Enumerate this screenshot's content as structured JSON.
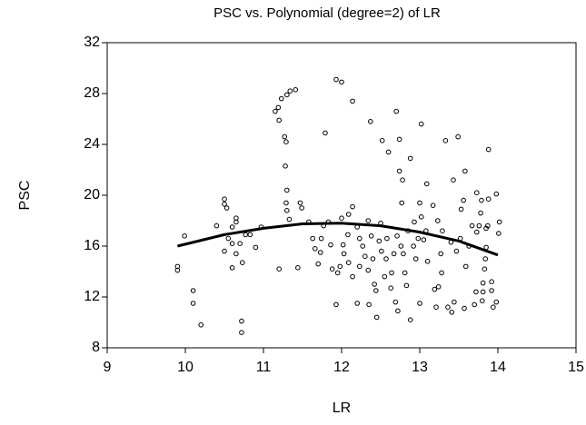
{
  "chart_data": {
    "type": "scatter",
    "title": "PSC vs. Polynomial (degree=2) of LR",
    "x_label": "LR",
    "y_label": "PSC",
    "xlim": [
      9,
      15
    ],
    "ylim": [
      8,
      32
    ],
    "xticks": [
      9,
      10,
      11,
      12,
      13,
      14,
      15
    ],
    "yticks": [
      8,
      12,
      16,
      20,
      24,
      28,
      32
    ],
    "series": [
      {
        "type": "scatter",
        "color": "#000000",
        "x": [
          9.9,
          9.9,
          9.99,
          10.1,
          10.1,
          10.2,
          10.4,
          10.5,
          10.5,
          10.53,
          10.5,
          10.55,
          10.6,
          10.6,
          10.6,
          10.65,
          10.65,
          10.7,
          10.72,
          10.72,
          10.73,
          10.65,
          10.77,
          10.83,
          10.9,
          10.97,
          11.15,
          11.19,
          11.2,
          11.2,
          11.23,
          11.27,
          11.29,
          11.3,
          11.28,
          11.3,
          11.29,
          11.3,
          11.33,
          11.34,
          11.41,
          11.44,
          11.47,
          11.49,
          11.58,
          11.63,
          11.66,
          11.7,
          11.74,
          11.73,
          11.77,
          11.79,
          11.83,
          11.86,
          11.88,
          11.93,
          12.0,
          11.93,
          11.95,
          11.98,
          12.0,
          12.02,
          12.03,
          12.08,
          12.09,
          12.14,
          12.09,
          12.14,
          12.14,
          12.2,
          12.2,
          12.23,
          12.23,
          12.27,
          12.3,
          12.34,
          12.35,
          12.34,
          12.37,
          12.38,
          12.4,
          12.42,
          12.44,
          12.45,
          12.48,
          12.5,
          12.51,
          12.52,
          12.55,
          12.57,
          12.58,
          12.6,
          12.63,
          12.64,
          12.67,
          12.69,
          12.7,
          12.71,
          12.72,
          12.74,
          12.76,
          12.77,
          12.74,
          12.78,
          12.79,
          12.81,
          12.83,
          12.85,
          12.88,
          12.88,
          12.92,
          12.93,
          12.95,
          12.98,
          13.0,
          13.0,
          13.02,
          13.02,
          13.05,
          13.08,
          13.09,
          13.1,
          13.17,
          13.19,
          13.21,
          13.23,
          13.24,
          13.29,
          13.27,
          13.28,
          13.33,
          13.36,
          13.4,
          13.41,
          13.43,
          13.44,
          13.47,
          13.49,
          13.52,
          13.53,
          13.56,
          13.57,
          13.58,
          13.59,
          13.63,
          13.67,
          13.7,
          13.72,
          13.73,
          13.73,
          13.76,
          13.78,
          13.79,
          13.8,
          13.81,
          13.81,
          13.83,
          13.84,
          13.85,
          13.85,
          13.87,
          13.88,
          13.88,
          13.92,
          13.92,
          13.94,
          13.98,
          14.01,
          14.02,
          13.98
        ],
        "values": [
          14.4,
          14.1,
          16.8,
          12.5,
          11.5,
          9.8,
          17.6,
          19.7,
          19.3,
          19.0,
          15.6,
          16.6,
          17.5,
          16.2,
          14.3,
          17.9,
          18.2,
          16.2,
          10.1,
          9.2,
          14.7,
          15.4,
          16.9,
          16.9,
          15.9,
          17.5,
          26.6,
          26.9,
          25.9,
          14.2,
          27.6,
          24.6,
          24.2,
          27.9,
          22.3,
          20.4,
          19.4,
          18.8,
          18.1,
          28.2,
          28.3,
          14.3,
          19.4,
          19.0,
          17.9,
          16.6,
          15.8,
          14.6,
          16.6,
          15.5,
          17.6,
          24.9,
          17.9,
          16.1,
          14.2,
          29.1,
          28.9,
          11.4,
          13.9,
          14.4,
          18.2,
          16.1,
          15.4,
          16.9,
          18.5,
          19.1,
          14.7,
          13.6,
          27.4,
          11.5,
          17.5,
          16.6,
          14.4,
          16.0,
          15.2,
          18.0,
          11.4,
          14.1,
          25.8,
          16.8,
          15.0,
          13.0,
          12.5,
          10.4,
          16.4,
          17.8,
          15.6,
          24.3,
          13.6,
          15.0,
          16.6,
          23.4,
          12.7,
          13.9,
          15.4,
          11.6,
          26.6,
          16.8,
          10.9,
          24.4,
          16.0,
          19.4,
          21.9,
          21.2,
          15.4,
          13.9,
          12.9,
          17.2,
          10.2,
          22.9,
          16.0,
          17.9,
          15.0,
          16.6,
          11.5,
          19.4,
          25.6,
          18.3,
          16.5,
          17.2,
          20.9,
          14.8,
          19.2,
          12.6,
          11.2,
          18.0,
          12.8,
          17.2,
          15.4,
          13.9,
          24.3,
          11.2,
          16.3,
          10.8,
          21.2,
          11.6,
          15.6,
          24.6,
          16.6,
          18.9,
          19.6,
          11.1,
          21.9,
          14.4,
          16.0,
          17.6,
          11.4,
          12.4,
          17.1,
          20.2,
          17.6,
          18.6,
          19.6,
          11.7,
          13.1,
          12.4,
          14.2,
          15.0,
          15.9,
          17.4,
          17.6,
          19.7,
          23.6,
          13.2,
          12.5,
          11.2,
          20.1,
          17.0,
          17.9,
          11.6
        ]
      },
      {
        "type": "line",
        "color": "#000000",
        "x": [
          9.9,
          10.5,
          11,
          11.5,
          12,
          12.5,
          13,
          13.5,
          14
        ],
        "values": [
          16.0,
          16.9,
          17.4,
          17.75,
          17.8,
          17.6,
          17.1,
          16.4,
          15.3
        ]
      }
    ]
  }
}
